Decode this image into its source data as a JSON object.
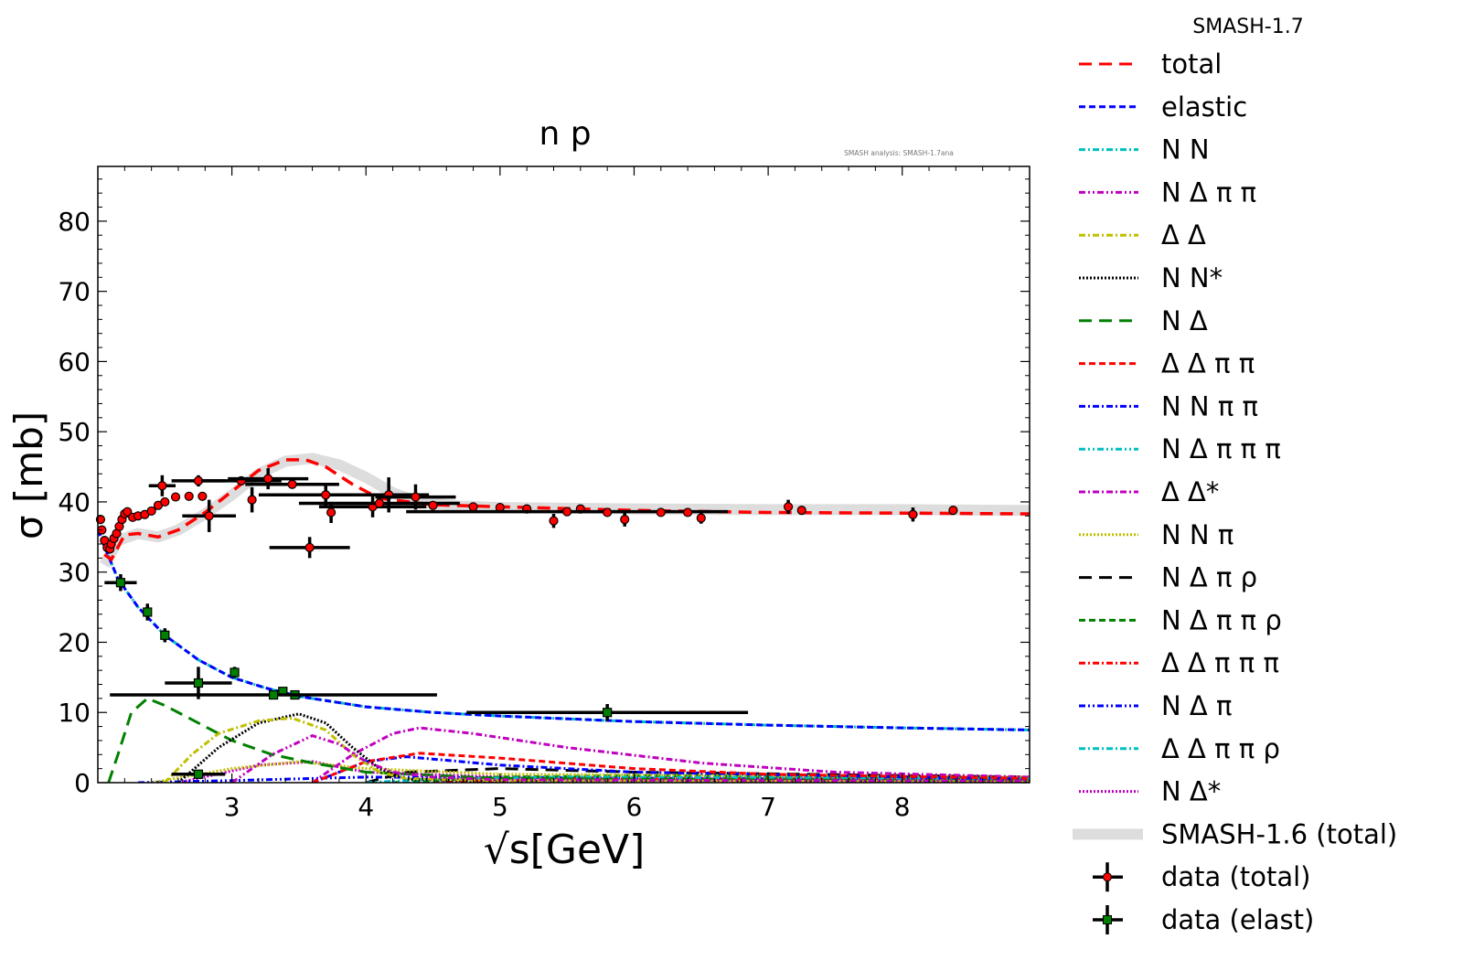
{
  "version_label": "SMASH-1.7",
  "watermark": "SMASH analysis: SMASH-1.7ana",
  "chart_data": {
    "type": "line",
    "title": "n p",
    "xlabel": "√s[GeV]",
    "ylabel": "σ [mb]",
    "xlim": [
      2.0,
      8.95
    ],
    "ylim": [
      0,
      87.8
    ],
    "xticks": [
      3,
      4,
      5,
      6,
      7,
      8
    ],
    "yticks": [
      0,
      10,
      20,
      30,
      40,
      50,
      60,
      70,
      80
    ],
    "grid": false,
    "legend_position": "outside-right",
    "band": {
      "name": "SMASH-1.6 (total)",
      "color": "#dddddd",
      "points": [
        [
          2.05,
          31
        ],
        [
          2.15,
          34.5
        ],
        [
          2.3,
          35.5
        ],
        [
          2.45,
          35
        ],
        [
          2.6,
          36
        ],
        [
          2.8,
          38.3
        ],
        [
          3.0,
          41
        ],
        [
          3.2,
          44
        ],
        [
          3.4,
          45.8
        ],
        [
          3.6,
          46.2
        ],
        [
          3.8,
          45.3
        ],
        [
          4.0,
          43.5
        ],
        [
          4.2,
          41.3
        ],
        [
          4.4,
          40
        ],
        [
          4.7,
          39.4
        ],
        [
          5,
          39.2
        ],
        [
          6,
          39
        ],
        [
          7,
          38.9
        ],
        [
          8,
          38.9
        ],
        [
          8.95,
          38.8
        ]
      ]
    },
    "series": [
      {
        "name": "total",
        "color": "#ff0000",
        "style": "dashed-long",
        "points": [
          [
            2.05,
            32.5
          ],
          [
            2.1,
            31.8
          ],
          [
            2.2,
            35.3
          ],
          [
            2.3,
            35.5
          ],
          [
            2.45,
            35
          ],
          [
            2.6,
            36
          ],
          [
            2.8,
            38.5
          ],
          [
            3.0,
            41.5
          ],
          [
            3.2,
            44.5
          ],
          [
            3.4,
            46
          ],
          [
            3.55,
            46
          ],
          [
            3.7,
            45
          ],
          [
            3.9,
            42.5
          ],
          [
            4.1,
            40.5
          ],
          [
            4.5,
            39.6
          ],
          [
            5,
            39.3
          ],
          [
            6,
            38.8
          ],
          [
            7,
            38.5
          ],
          [
            8,
            38.4
          ],
          [
            8.95,
            38.3
          ]
        ]
      },
      {
        "name": "elastic",
        "color": "#0000ff",
        "style": "dashed",
        "points": [
          [
            2.0,
            36
          ],
          [
            2.15,
            29
          ],
          [
            2.3,
            25
          ],
          [
            2.5,
            21
          ],
          [
            2.75,
            17.5
          ],
          [
            3.0,
            15
          ],
          [
            3.25,
            13.5
          ],
          [
            3.5,
            12.3
          ],
          [
            4,
            10.8
          ],
          [
            4.5,
            10
          ],
          [
            5,
            9.5
          ],
          [
            6,
            8.7
          ],
          [
            7,
            8.2
          ],
          [
            8,
            7.8
          ],
          [
            8.95,
            7.5
          ]
        ]
      },
      {
        "name": "N N",
        "color": "#00bfbf",
        "style": "dashdot",
        "points": [
          [
            2.0,
            36
          ],
          [
            2.15,
            29
          ],
          [
            2.3,
            25
          ],
          [
            2.5,
            21
          ],
          [
            2.75,
            17.5
          ],
          [
            3.0,
            15
          ],
          [
            3.25,
            13.5
          ],
          [
            3.5,
            12.3
          ],
          [
            4,
            10.8
          ],
          [
            4.5,
            10
          ],
          [
            5,
            9.5
          ],
          [
            6,
            8.7
          ],
          [
            7,
            8.2
          ],
          [
            8,
            7.8
          ],
          [
            8.95,
            7.5
          ]
        ]
      },
      {
        "name": "N Δ π π",
        "color": "#bf00bf",
        "style": "dashdotdot",
        "points": [
          [
            3.0,
            0
          ],
          [
            3.3,
            4
          ],
          [
            3.6,
            6.7
          ],
          [
            3.8,
            5.5
          ],
          [
            4.0,
            3
          ],
          [
            4.2,
            1.5
          ],
          [
            4.5,
            0.8
          ],
          [
            5,
            0.4
          ],
          [
            8.95,
            0.2
          ]
        ]
      },
      {
        "name": "Δ Δ",
        "color": "#bfbf00",
        "style": "dashdot",
        "points": [
          [
            2.5,
            0
          ],
          [
            2.7,
            4
          ],
          [
            2.9,
            7
          ],
          [
            3.2,
            8.8
          ],
          [
            3.45,
            9.2
          ],
          [
            3.7,
            7.5
          ],
          [
            3.9,
            4
          ],
          [
            4.1,
            1.5
          ],
          [
            4.3,
            0.6
          ],
          [
            5,
            0.3
          ],
          [
            8.95,
            0.1
          ]
        ]
      },
      {
        "name": "N N*",
        "color": "#000000",
        "style": "dotted",
        "points": [
          [
            2.6,
            0
          ],
          [
            2.9,
            5
          ],
          [
            3.2,
            8.5
          ],
          [
            3.5,
            9.8
          ],
          [
            3.7,
            8.5
          ],
          [
            3.9,
            5
          ],
          [
            4.1,
            2
          ],
          [
            4.3,
            0.5
          ],
          [
            5,
            0.2
          ],
          [
            8.95,
            0.1
          ]
        ]
      },
      {
        "name": "N Δ",
        "color": "#008000",
        "style": "dashed-long",
        "points": [
          [
            2.08,
            0
          ],
          [
            2.15,
            4
          ],
          [
            2.25,
            10
          ],
          [
            2.37,
            12
          ],
          [
            2.5,
            11
          ],
          [
            2.8,
            8
          ],
          [
            3.0,
            6
          ],
          [
            3.3,
            4
          ],
          [
            3.6,
            2.8
          ],
          [
            4,
            1.5
          ],
          [
            5,
            0.6
          ],
          [
            8.95,
            0.2
          ]
        ]
      },
      {
        "name": "Δ Δ π π",
        "color": "#ff0000",
        "style": "dashed",
        "points": [
          [
            3.6,
            0
          ],
          [
            4.0,
            3
          ],
          [
            4.4,
            4.2
          ],
          [
            5,
            3.5
          ],
          [
            6,
            2
          ],
          [
            7,
            1.2
          ],
          [
            8.95,
            0.6
          ]
        ]
      },
      {
        "name": "N N π π",
        "color": "#0000ff",
        "style": "dashdot",
        "points": [
          [
            3.6,
            0
          ],
          [
            4.0,
            3
          ],
          [
            4.3,
            3.7
          ],
          [
            5,
            2.5
          ],
          [
            6,
            1.5
          ],
          [
            8.95,
            0.5
          ]
        ]
      },
      {
        "name": "N Δ π π π",
        "color": "#00bfbf",
        "style": "dashdotdot",
        "points": [
          [
            4.0,
            0
          ],
          [
            4.5,
            0.5
          ],
          [
            5.5,
            0.8
          ],
          [
            8.95,
            0.6
          ]
        ]
      },
      {
        "name": "Δ Δ*",
        "color": "#bf00bf",
        "style": "dashdot",
        "points": [
          [
            3.6,
            0
          ],
          [
            3.9,
            4
          ],
          [
            4.2,
            7
          ],
          [
            4.4,
            7.8
          ],
          [
            4.8,
            7
          ],
          [
            5.5,
            5
          ],
          [
            6.5,
            2.8
          ],
          [
            7.5,
            1.5
          ],
          [
            8.95,
            0.8
          ]
        ]
      },
      {
        "name": "N N π",
        "color": "#bfbf00",
        "style": "dotted",
        "points": [
          [
            2.4,
            0
          ],
          [
            3.0,
            2
          ],
          [
            3.5,
            3
          ],
          [
            4,
            2
          ],
          [
            5,
            1.2
          ],
          [
            8.95,
            0.8
          ]
        ]
      },
      {
        "name": "N Δ π ρ",
        "color": "#000000",
        "style": "dashed-long",
        "points": [
          [
            4.0,
            0
          ],
          [
            4.3,
            1.5
          ],
          [
            5,
            2
          ],
          [
            6,
            1.5
          ],
          [
            8.95,
            0.8
          ]
        ]
      },
      {
        "name": "N Δ π π ρ",
        "color": "#008000",
        "style": "dashed",
        "points": [
          [
            4.2,
            0
          ],
          [
            5,
            0.8
          ],
          [
            6,
            1
          ],
          [
            8.95,
            0.7
          ]
        ]
      },
      {
        "name": "Δ Δ π π π",
        "color": "#ff0000",
        "style": "dashdot",
        "points": [
          [
            4.5,
            0
          ],
          [
            5.5,
            0.5
          ],
          [
            8.95,
            0.6
          ]
        ]
      },
      {
        "name": "N Δ π",
        "color": "#0000ff",
        "style": "dashdotdot",
        "points": [
          [
            2.3,
            0
          ],
          [
            3,
            0.3
          ],
          [
            4,
            0.8
          ],
          [
            5,
            0.7
          ],
          [
            8.95,
            0.4
          ]
        ]
      },
      {
        "name": "Δ Δ π π ρ",
        "color": "#00bfbf",
        "style": "dashdot",
        "points": [
          [
            4.6,
            0
          ],
          [
            5.5,
            0.3
          ],
          [
            8.95,
            0.5
          ]
        ]
      },
      {
        "name": "N Δ*",
        "color": "#bf00bf",
        "style": "dotted",
        "points": [
          [
            2.6,
            0
          ],
          [
            3.2,
            2.5
          ],
          [
            3.6,
            3
          ],
          [
            4,
            1.5
          ],
          [
            5,
            0.8
          ],
          [
            8.95,
            0.3
          ]
        ]
      }
    ],
    "data_total": {
      "name": "data (total)",
      "color": "#ff0000",
      "points": [
        [
          2.02,
          37.5,
          0,
          0.5
        ],
        [
          2.03,
          36,
          0,
          0
        ],
        [
          2.05,
          34.5,
          0,
          0
        ],
        [
          2.07,
          33.5,
          0,
          0
        ],
        [
          2.09,
          33.3,
          0,
          0
        ],
        [
          2.1,
          34,
          0,
          0
        ],
        [
          2.12,
          34.8,
          0,
          0
        ],
        [
          2.14,
          35.5,
          0,
          0
        ],
        [
          2.16,
          36.5,
          0,
          0
        ],
        [
          2.18,
          37.5,
          0,
          0
        ],
        [
          2.2,
          38.3,
          0,
          0
        ],
        [
          2.22,
          38.6,
          0,
          0
        ],
        [
          2.26,
          37.8,
          0,
          0
        ],
        [
          2.3,
          38,
          0,
          0
        ],
        [
          2.35,
          38.2,
          0,
          0
        ],
        [
          2.4,
          38.7,
          0,
          0
        ],
        [
          2.45,
          39.5,
          0,
          0
        ],
        [
          2.5,
          40,
          0,
          0
        ],
        [
          2.58,
          40.7,
          0,
          0
        ],
        [
          2.68,
          40.8,
          0,
          0
        ],
        [
          2.78,
          40.8,
          0,
          0
        ],
        [
          2.48,
          42.3,
          0.1,
          1.5
        ],
        [
          2.75,
          43,
          0.2,
          0.8
        ],
        [
          2.83,
          38,
          0.2,
          2.3
        ],
        [
          3.07,
          43,
          0.3,
          0.4
        ],
        [
          3.15,
          40.3,
          0,
          1.8
        ],
        [
          3.27,
          43.3,
          0.3,
          1.5
        ],
        [
          3.45,
          42.5,
          0.35,
          0.3
        ],
        [
          3.58,
          33.5,
          0.3,
          1.5
        ],
        [
          3.7,
          41,
          0.5,
          1.5
        ],
        [
          3.74,
          38.5,
          0,
          1.5
        ],
        [
          4.05,
          39.3,
          0.4,
          1.5
        ],
        [
          4.1,
          39.8,
          0.6,
          0.3
        ],
        [
          4.17,
          41,
          0.3,
          2.5
        ],
        [
          4.37,
          40.7,
          0.3,
          1.8
        ],
        [
          4.5,
          39.5,
          0,
          0
        ],
        [
          4.8,
          39.3,
          0,
          0
        ],
        [
          5.0,
          39.2,
          0,
          0
        ],
        [
          5.2,
          39,
          0,
          0
        ],
        [
          5.4,
          37.3,
          0,
          1
        ],
        [
          5.6,
          39,
          0,
          0
        ],
        [
          5.5,
          38.6,
          1.2,
          0
        ],
        [
          5.8,
          38.5,
          0,
          0
        ],
        [
          5.93,
          37.5,
          0,
          1
        ],
        [
          6.2,
          38.5,
          0,
          0
        ],
        [
          6.4,
          38.5,
          0,
          0
        ],
        [
          6.5,
          37.7,
          0,
          0.8
        ],
        [
          7.15,
          39.3,
          0,
          1
        ],
        [
          7.25,
          38.8,
          0,
          0
        ],
        [
          8.08,
          38.2,
          0,
          1
        ],
        [
          8.38,
          38.8,
          0,
          0
        ]
      ]
    },
    "data_elastic": {
      "name": "data (elast)",
      "color": "#008000",
      "points": [
        [
          2.17,
          28.5,
          0.12,
          1.2
        ],
        [
          2.37,
          24.3,
          0,
          1.2
        ],
        [
          2.5,
          21,
          0,
          1.0
        ],
        [
          2.75,
          14.2,
          0.25,
          2.3
        ],
        [
          3.02,
          15.7,
          0,
          0.8
        ],
        [
          3.38,
          13,
          0,
          0.4
        ],
        [
          3.47,
          12.5,
          0,
          0.4
        ],
        [
          3.31,
          12.5,
          1.22,
          0
        ],
        [
          5.8,
          10,
          1.05,
          1.2
        ],
        [
          2.75,
          1.2,
          0.2,
          0
        ]
      ]
    }
  }
}
